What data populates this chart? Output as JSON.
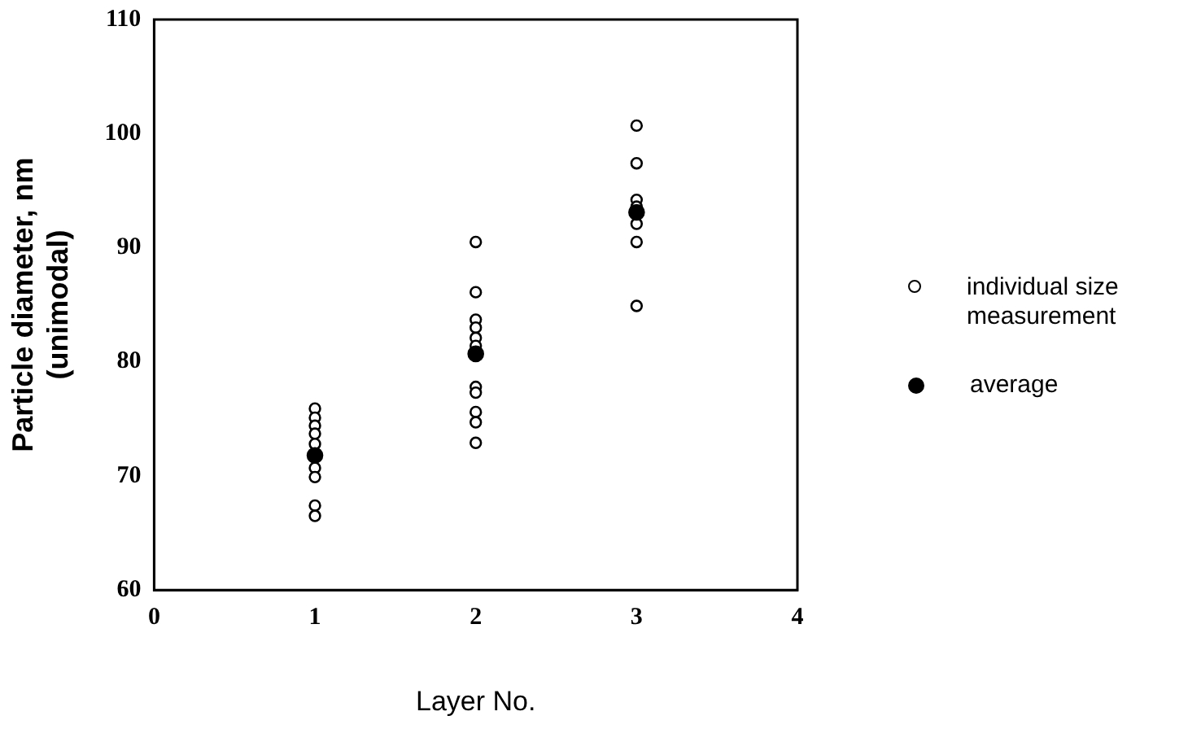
{
  "chart_data": {
    "type": "scatter",
    "xlabel": "Layer No.",
    "ylabel": "Particle diameter, nm\n(unimodal)",
    "xlim": [
      0,
      4
    ],
    "xticks": [
      0,
      1,
      2,
      3,
      4
    ],
    "ylim": [
      60,
      110
    ],
    "yticks": [
      60,
      70,
      80,
      90,
      100,
      110
    ],
    "grid": false,
    "legend": "right",
    "marker": "circle",
    "series": [
      {
        "name": "individual size measurement",
        "color": "#000000",
        "x": [
          1,
          1,
          1,
          1,
          1,
          1,
          1,
          1,
          1,
          2,
          2,
          2,
          2,
          2,
          2,
          2,
          2,
          2,
          2,
          2,
          3,
          3,
          3,
          3,
          3,
          3,
          3
        ],
        "values": [
          75.9,
          75.1,
          74.4,
          73.7,
          72.8,
          70.7,
          69.9,
          67.4,
          66.5,
          90.5,
          86.1,
          83.7,
          83,
          82.1,
          81.4,
          77.8,
          77.3,
          75.6,
          74.7,
          72.9,
          100.7,
          97.4,
          94.2,
          93.6,
          92.1,
          90.5,
          84.9
        ]
      },
      {
        "name": "average",
        "color": "#000000",
        "x": [
          1,
          2,
          3
        ],
        "values": [
          71.8,
          80.7,
          93.1
        ]
      }
    ]
  }
}
